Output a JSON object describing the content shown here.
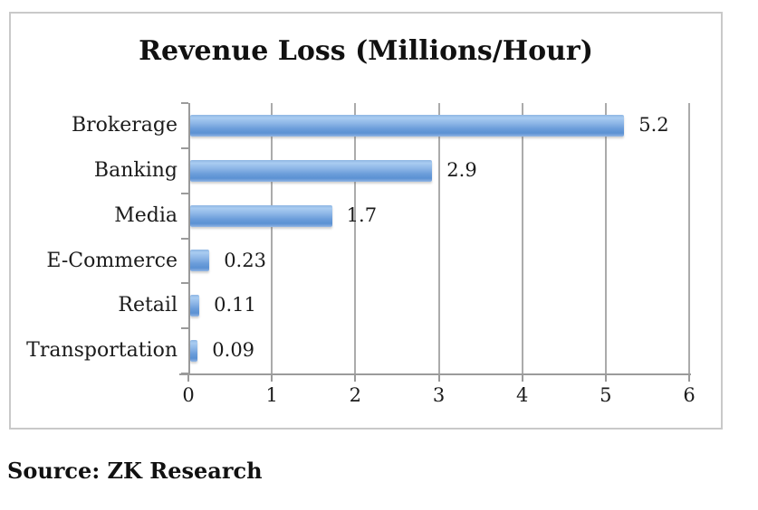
{
  "title": "Revenue Loss (Millions/Hour)",
  "source": "Source: ZK Research",
  "chart_data": {
    "type": "bar",
    "orientation": "horizontal",
    "title": "Revenue Loss (Millions/Hour)",
    "categories": [
      "Brokerage",
      "Banking",
      "Media",
      "E-Commerce",
      "Retail",
      "Transportation"
    ],
    "values": [
      5.2,
      2.9,
      1.7,
      0.23,
      0.11,
      0.09
    ],
    "value_labels": [
      "5.2",
      "2.9",
      "1.7",
      "0.23",
      "0.11",
      "0.09"
    ],
    "xlabel": "",
    "ylabel": "",
    "xlim": [
      0,
      6
    ],
    "x_tick_values": [
      0,
      1,
      2,
      3,
      4,
      5,
      6
    ],
    "x_tick_labels": [
      "0",
      "1",
      "2",
      "3",
      "4",
      "5",
      "6"
    ],
    "grid": "vertical gridlines at integer values",
    "legend": "none",
    "data_labels": "shown at end of each bar",
    "colors": {
      "bar_fill": "#6FA3DF",
      "bar_gradient_top": "#A9CCF1",
      "bar_gradient_bottom": "#5B91D3",
      "gridline": "#ABABAB",
      "axis_line": "#9B9B9B",
      "frame_border": "#C9C9C9",
      "text": "#1B1B1B",
      "background": "#FFFFFF"
    }
  }
}
